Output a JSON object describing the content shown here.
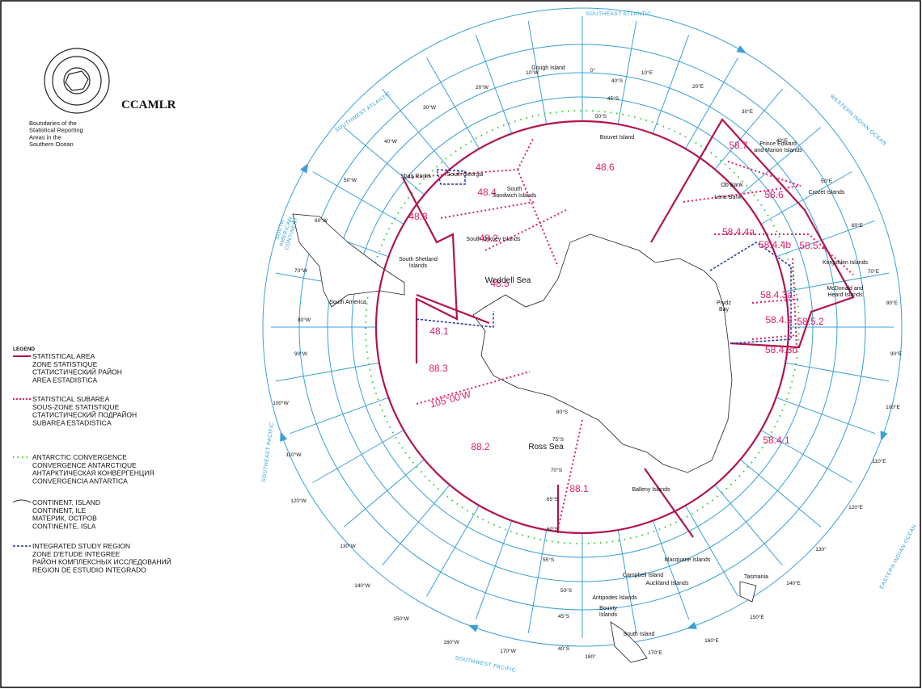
{
  "header": {
    "logo_text": "CCAMLR",
    "subtitle": [
      "Boundaries of the",
      "Statistical Reporting",
      "Areas in the",
      "Southern Ocean"
    ]
  },
  "legend": {
    "title": "LEGEND",
    "items": [
      [
        "STATISTICAL AREA",
        "ZONE STATISTIQUE",
        "СТАТИСТИЧЕСКИЙ РАЙОН",
        "AREA ESTADISTICA"
      ],
      [
        "STATISTICAL SUBAREA",
        "SOUS-ZONE STATISTIQUE",
        "СТАТИСТИЧЕСКИЙ ПОДРАЙОН",
        "SUBAREA ESTADISTICA"
      ],
      [
        "ANTARCTIC CONVERGENCE",
        "CONVERGENCE ANTARCTIQUE",
        "АНТАРКТИЧЕСКАЯ КОНВЕРГЕНЦИЯ",
        "CONVERGENCIA ANTARTICA"
      ],
      [
        "CONTINENT, ISLAND",
        "CONTINENT, ILE",
        "МАТЕРИК, ОСТРОВ",
        "CONTINENTE, ISLA"
      ],
      [
        "INTEGRATED STUDY REGION",
        "ZONE D'ETUDE INTEGREE",
        "РАЙОН КОМПЛЕКСНЫХ ИССЛЕДОВАНИЙ",
        "REGION DE ESTUDIO INTEGRADO"
      ]
    ]
  },
  "oceans": [
    "SOUTHEAST ATLANTIC",
    "WESTERN INDIAN OCEAN",
    "EASTERN INDIAN OCEAN",
    "SOUTHWEST PACIFIC",
    "SOUTHEAST PACIFIC",
    "SOUTHWEST ATLANTIC",
    [
      "SOUTH",
      "AMERICAN",
      "CONTINENT"
    ]
  ],
  "longitudes": [
    "10°W",
    "0°",
    "10°E",
    "20°W",
    "20°E",
    "30°W",
    "30°E",
    "40°W",
    "40°E",
    "50°W",
    "50°E",
    "60°W",
    "60°E",
    "70°W",
    "70°E",
    "80°W",
    "80°E",
    "90°W",
    "90°E",
    "100°W",
    "100°E",
    "110°W",
    "110°E",
    "120°W",
    "120°E",
    "130°W",
    "130°",
    "140°W",
    "140°E",
    "150°W",
    "150°E",
    "160°W",
    "160°E",
    "170°W",
    "170°E",
    "180°"
  ],
  "latitudes": [
    "40°S",
    "45°S",
    "50°S",
    "40°S",
    "45°S",
    "50°S",
    "55°S",
    "60°S",
    "65°S",
    "70°S",
    "75°S",
    "80°S"
  ],
  "areas": [
    "48.1",
    "48.2",
    "48.3",
    "48.4",
    "48.5",
    "48.6",
    "58.4.1",
    "58.4.2",
    "58.4.3a",
    "58.4.3b",
    "58.4.4a",
    "58.4.4b",
    "58.5.1",
    "58.5.2",
    "58.6",
    "58.7",
    "88.1",
    "88.2",
    "88.3",
    "105°00'W"
  ],
  "places": [
    "Gough Island",
    "Bouvet Island",
    [
      "Prince Edward",
      "and Marion Islands"
    ],
    "Crozet Islands",
    "Ob Bank",
    "Lena Bank",
    "Kerguelen Islands",
    [
      "McDonald and",
      "Heard Islands"
    ],
    [
      "Prydz",
      "Bay"
    ],
    "Balleny Islands",
    "Macquarie Islands",
    "Campbell Island",
    "Auckland Islands",
    "Tasmania",
    "Antipodes Islands",
    [
      "Bounty",
      "Islands"
    ],
    "South Island",
    "Shag Rocks",
    "South Georgia",
    [
      "South",
      "Sandwich Islands"
    ],
    "South Orkney Islands",
    [
      "South Shetland",
      "Islands"
    ],
    "South America"
  ],
  "seas": [
    "Weddell Sea",
    "Ross Sea"
  ]
}
